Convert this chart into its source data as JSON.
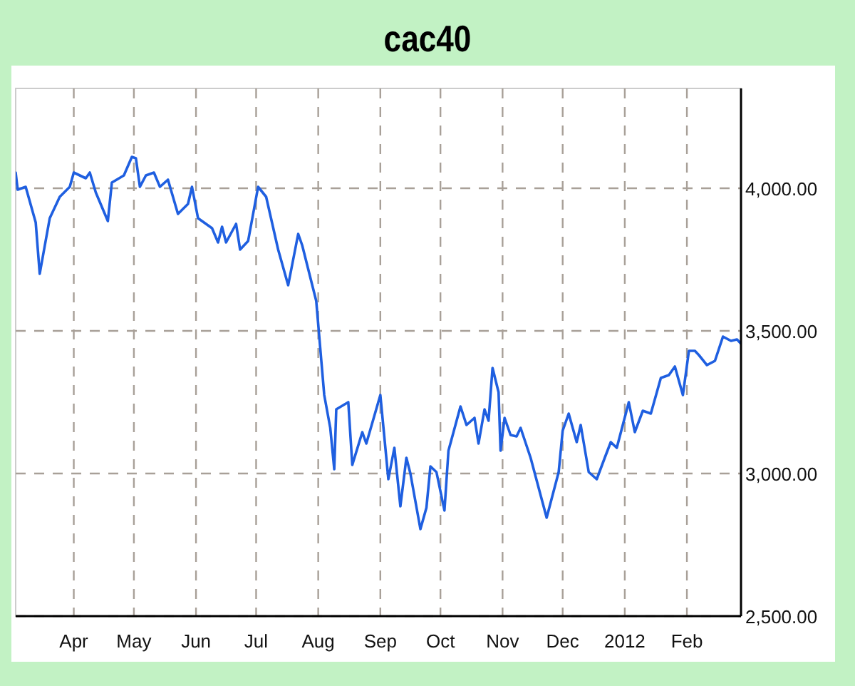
{
  "chart_data": {
    "type": "line",
    "title": "cac40",
    "x": [
      "2011-03-03",
      "2011-03-04",
      "2011-03-08",
      "2011-03-13",
      "2011-03-15",
      "2011-03-20",
      "2011-03-25",
      "2011-03-30",
      "2011-04-01",
      "2011-04-07",
      "2011-04-09",
      "2011-04-12",
      "2011-04-18",
      "2011-04-20",
      "2011-04-26",
      "2011-04-30",
      "2011-05-02",
      "2011-05-04",
      "2011-05-07",
      "2011-05-11",
      "2011-05-14",
      "2011-05-18",
      "2011-05-23",
      "2011-05-28",
      "2011-05-30",
      "2011-06-02",
      "2011-06-09",
      "2011-06-12",
      "2011-06-14",
      "2011-06-16",
      "2011-06-21",
      "2011-06-23",
      "2011-06-27",
      "2011-07-02",
      "2011-07-06",
      "2011-07-12",
      "2011-07-17",
      "2011-07-22",
      "2011-07-24",
      "2011-07-31",
      "2011-08-04",
      "2011-08-07",
      "2011-08-09",
      "2011-08-10",
      "2011-08-16",
      "2011-08-18",
      "2011-08-23",
      "2011-08-25",
      "2011-09-01",
      "2011-09-05",
      "2011-09-08",
      "2011-09-11",
      "2011-09-14",
      "2011-09-16",
      "2011-09-21",
      "2011-09-24",
      "2011-09-26",
      "2011-09-29",
      "2011-10-03",
      "2011-10-05",
      "2011-10-11",
      "2011-10-14",
      "2011-10-18",
      "2011-10-20",
      "2011-10-23",
      "2011-10-25",
      "2011-10-27",
      "2011-10-30",
      "2011-10-31",
      "2011-11-02",
      "2011-11-05",
      "2011-11-08",
      "2011-11-10",
      "2011-11-15",
      "2011-11-23",
      "2011-11-29",
      "2011-12-01",
      "2011-12-04",
      "2011-12-08",
      "2011-12-10",
      "2011-12-14",
      "2011-12-18",
      "2011-12-22",
      "2011-12-25",
      "2011-12-28",
      "2012-01-03",
      "2012-01-06",
      "2012-01-10",
      "2012-01-14",
      "2012-01-19",
      "2012-01-23",
      "2012-01-26",
      "2012-01-30",
      "2012-02-02",
      "2012-02-05",
      "2012-02-07",
      "2012-02-11",
      "2012-02-15",
      "2012-02-19",
      "2012-02-23",
      "2012-02-26",
      "2012-02-28"
    ],
    "series": [
      {
        "color": "#1f5fe0",
        "values": [
          4055,
          3995,
          4005,
          3880,
          3700,
          3895,
          3970,
          4005,
          4055,
          4035,
          4055,
          3985,
          3885,
          4020,
          4045,
          4110,
          4105,
          4005,
          4045,
          4055,
          4005,
          4030,
          3910,
          3945,
          4005,
          3895,
          3860,
          3810,
          3865,
          3810,
          3875,
          3785,
          3815,
          4005,
          3970,
          3785,
          3660,
          3840,
          3800,
          3605,
          3275,
          3160,
          3015,
          3225,
          3250,
          3030,
          3145,
          3105,
          3275,
          2980,
          3090,
          2885,
          3055,
          3000,
          2805,
          2880,
          3025,
          3005,
          2870,
          3080,
          3235,
          3170,
          3195,
          3105,
          3225,
          3185,
          3370,
          3285,
          3080,
          3195,
          3135,
          3130,
          3160,
          3055,
          2845,
          3005,
          3150,
          3210,
          3110,
          3170,
          3005,
          2980,
          3055,
          3110,
          3090,
          3250,
          3145,
          3220,
          3210,
          3335,
          3345,
          3375,
          3275,
          3430,
          3430,
          3415,
          3380,
          3395,
          3480,
          3465,
          3470,
          3455
        ]
      }
    ],
    "xlim": [
      "2011-03-03",
      "2012-02-28"
    ],
    "xticks": [
      {
        "value": "2011-04-01",
        "label": "Apr"
      },
      {
        "value": "2011-05-01",
        "label": "May"
      },
      {
        "value": "2011-06-01",
        "label": "Jun"
      },
      {
        "value": "2011-07-01",
        "label": "Jul"
      },
      {
        "value": "2011-08-01",
        "label": "Aug"
      },
      {
        "value": "2011-09-01",
        "label": "Sep"
      },
      {
        "value": "2011-10-01",
        "label": "Oct"
      },
      {
        "value": "2011-11-01",
        "label": "Nov"
      },
      {
        "value": "2011-12-01",
        "label": "Dec"
      },
      {
        "value": "2012-01-01",
        "label": "2012"
      },
      {
        "value": "2012-02-01",
        "label": "Feb"
      }
    ],
    "ylim": [
      2500,
      4350
    ],
    "yticks": [
      {
        "value": 2500,
        "label": "2,500.00"
      },
      {
        "value": 3000,
        "label": "3,000.00"
      },
      {
        "value": 3500,
        "label": "3,500.00"
      },
      {
        "value": 4000,
        "label": "4,000.00"
      }
    ],
    "grid": true,
    "marker": "none",
    "line_style": "solid"
  }
}
